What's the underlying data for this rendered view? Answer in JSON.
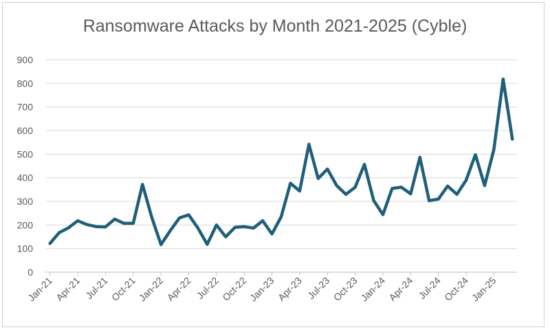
{
  "chart_data": {
    "type": "line",
    "title": "Ransomware Attacks by Month 2021-2025 (Cyble)",
    "xlabel": "",
    "ylabel": "",
    "ylim": [
      0,
      900
    ],
    "yticks": [
      "0",
      "100",
      "200",
      "300",
      "400",
      "500",
      "600",
      "700",
      "800",
      "900"
    ],
    "grid": true,
    "legend": "none",
    "x_tick_labels": [
      "Jan-21",
      "Apr-21",
      "Jul-21",
      "Oct-21",
      "Jan-22",
      "Apr-22",
      "Jul-22",
      "Oct-22",
      "Jan-23",
      "Apr-23",
      "Jul-23",
      "Oct-23",
      "Jan-24",
      "Apr-24",
      "Jul-24",
      "Oct-24",
      "Jan-25"
    ],
    "x_tick_every": 3,
    "line_color": "#1f5f7a",
    "series": [
      {
        "x": [
          "Jan-21",
          "Feb-21",
          "Mar-21",
          "Apr-21",
          "May-21",
          "Jun-21",
          "Jul-21",
          "Aug-21",
          "Sep-21",
          "Oct-21",
          "Nov-21",
          "Dec-21",
          "Jan-22",
          "Feb-22",
          "Mar-22",
          "Apr-22",
          "May-22",
          "Jun-22",
          "Jul-22",
          "Aug-22",
          "Sep-22",
          "Oct-22",
          "Nov-22",
          "Dec-22",
          "Jan-23",
          "Feb-23",
          "Mar-23",
          "Apr-23",
          "May-23",
          "Jun-23",
          "Jul-23",
          "Aug-23",
          "Sep-23",
          "Oct-23",
          "Nov-23",
          "Dec-23",
          "Jan-24",
          "Feb-24",
          "Mar-24",
          "Apr-24",
          "May-24",
          "Jun-24",
          "Jul-24",
          "Aug-24",
          "Sep-24",
          "Oct-24",
          "Nov-24",
          "Dec-24",
          "Jan-25",
          "Feb-25",
          "Mar-25"
        ],
        "values": [
          122,
          168,
          188,
          218,
          202,
          193,
          192,
          225,
          207,
          207,
          372,
          233,
          117,
          176,
          230,
          243,
          187,
          118,
          200,
          150,
          190,
          193,
          187,
          218,
          162,
          235,
          377,
          344,
          542,
          397,
          437,
          367,
          330,
          360,
          457,
          304,
          244,
          355,
          360,
          332,
          487,
          303,
          310,
          365,
          330,
          390,
          498,
          367,
          520,
          818,
          564
        ]
      }
    ]
  }
}
